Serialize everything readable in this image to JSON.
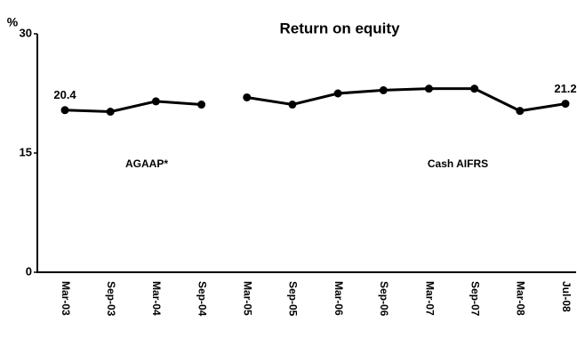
{
  "chart_data": {
    "type": "line",
    "title": "Return on equity",
    "ylabel": "%",
    "categories": [
      "Mar-03",
      "Sep-03",
      "Mar-04",
      "Sep-04",
      "Mar-05",
      "Sep-05",
      "Mar-06",
      "Sep-06",
      "Mar-07",
      "Sep-07",
      "Mar-08",
      "Jul-08"
    ],
    "series": [
      {
        "name": "AGAAP*",
        "color": "#000000",
        "values": [
          20.4,
          20.2,
          21.5,
          21.1,
          null,
          null,
          null,
          null,
          null,
          null,
          null,
          null
        ]
      },
      {
        "name": "Cash AIFRS",
        "color": "#000000",
        "values": [
          null,
          null,
          null,
          null,
          22.0,
          21.1,
          22.5,
          22.9,
          23.1,
          23.1,
          20.3,
          21.2
        ]
      }
    ],
    "ylim": [
      0,
      30
    ],
    "yticks": [
      0,
      15,
      30
    ],
    "grid": false
  }
}
